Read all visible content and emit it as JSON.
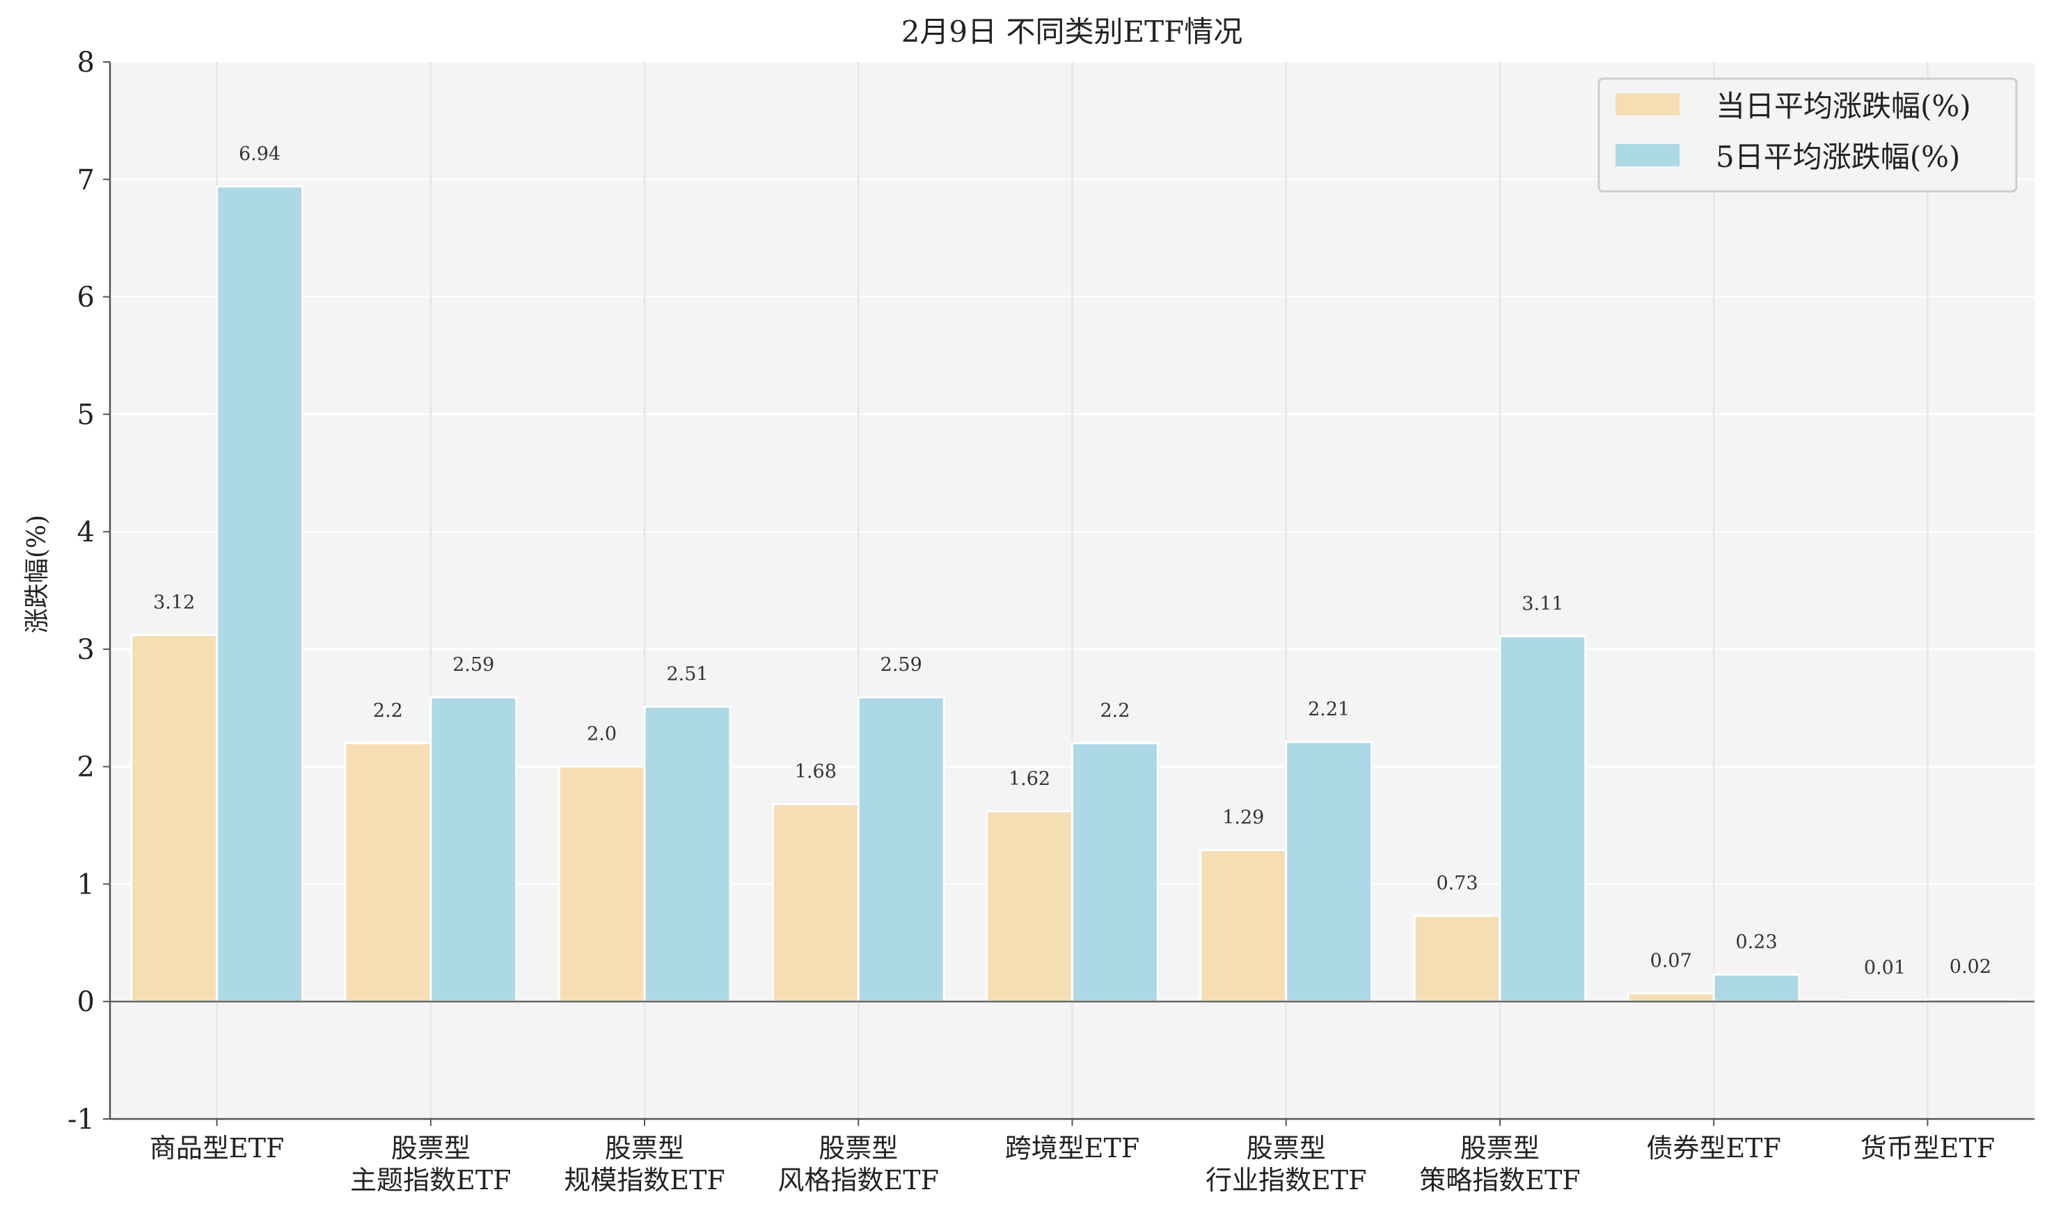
{
  "chart_data": {
    "type": "bar",
    "title": "2月9日 不同类别ETF情况",
    "xlabel": "",
    "ylabel": "涨跌幅(%)",
    "ylim": [
      -1,
      8
    ],
    "yticks": [
      "-1",
      "0",
      "1",
      "2",
      "3",
      "4",
      "5",
      "6",
      "7",
      "8"
    ],
    "grid": true,
    "legend_position": "top-right",
    "categories": [
      [
        "商品型ETF"
      ],
      [
        "股票型",
        "主题指数ETF"
      ],
      [
        "股票型",
        "规模指数ETF"
      ],
      [
        "股票型",
        "风格指数ETF"
      ],
      [
        "跨境型ETF"
      ],
      [
        "股票型",
        "行业指数ETF"
      ],
      [
        "股票型",
        "策略指数ETF"
      ],
      [
        "债券型ETF"
      ],
      [
        "货币型ETF"
      ]
    ],
    "series": [
      {
        "name": "当日平均涨跌幅(%)",
        "color": "#F5DEB3",
        "values": [
          3.12,
          2.2,
          2.0,
          1.68,
          1.62,
          1.29,
          0.73,
          0.07,
          0.01
        ],
        "labels": [
          "3.12",
          "2.2",
          "2.0",
          "1.68",
          "1.62",
          "1.29",
          "0.73",
          "0.07",
          "0.01"
        ]
      },
      {
        "name": "5日平均涨跌幅(%)",
        "color": "#ADD8E6",
        "values": [
          6.94,
          2.59,
          2.51,
          2.59,
          2.2,
          2.21,
          3.11,
          0.23,
          0.02
        ],
        "labels": [
          "6.94",
          "2.59",
          "2.51",
          "2.59",
          "2.2",
          "2.21",
          "3.11",
          "0.23",
          "0.02"
        ]
      }
    ]
  }
}
